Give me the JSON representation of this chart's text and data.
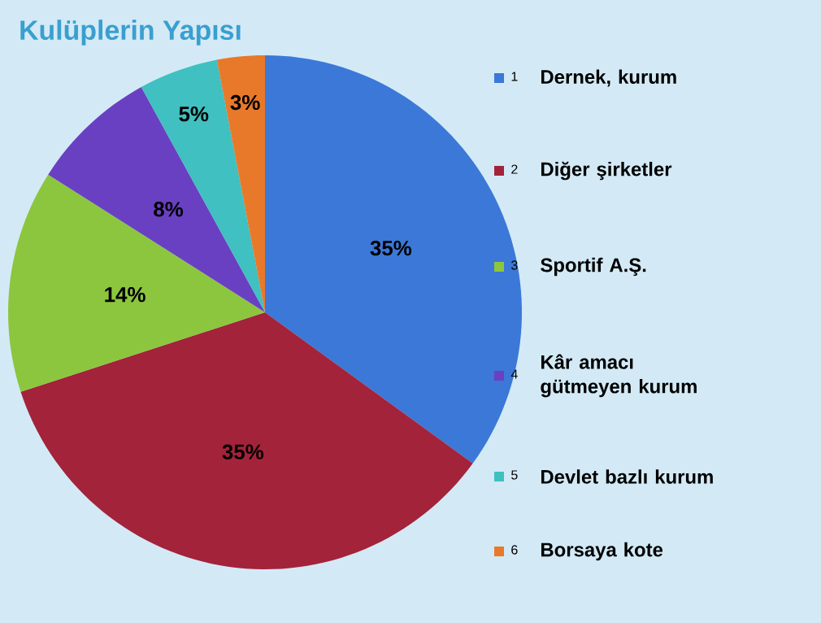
{
  "chart_data": {
    "type": "pie",
    "title": "Kulüplerin Yapısı",
    "categories": [
      "Dernek, kurum",
      "Diğer şirketler",
      "Sportif A.Ş.",
      "Kâr amacı gütmeyen kurum",
      "Devlet bazlı kurum",
      "Borsaya kote"
    ],
    "values": [
      35,
      35,
      14,
      8,
      5,
      3
    ],
    "colors": [
      "#3b78d8",
      "#a3233a",
      "#8cc63e",
      "#6a40c2",
      "#40c0c0",
      "#e8792a"
    ],
    "value_labels": [
      "35%",
      "35%",
      "14%",
      "8%",
      "5%",
      "3%"
    ],
    "annotations": [
      "1",
      "2",
      "3",
      "4",
      "5",
      "6"
    ],
    "legend": "right"
  }
}
